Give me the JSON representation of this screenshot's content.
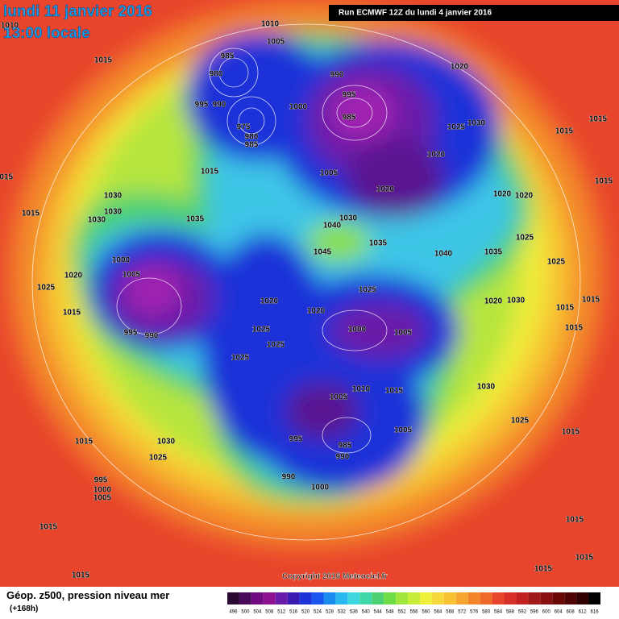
{
  "header": {
    "date": "lundi 11 janvier 2016",
    "time": "13:00 locale",
    "run": "Run ECMWF 12Z du lundi 4 janvier 2016"
  },
  "footer": {
    "field": "Géop. z500, pression niveau mer",
    "lead": "(+168h)",
    "copyright": "Copyright 2016 Meteociel.fr"
  },
  "colorbar": {
    "ticks": [
      496,
      500,
      504,
      508,
      512,
      516,
      520,
      524,
      528,
      532,
      536,
      540,
      544,
      548,
      552,
      556,
      560,
      564,
      568,
      572,
      576,
      580,
      584,
      588,
      592,
      596,
      600,
      604,
      608,
      612,
      616
    ]
  },
  "pressure_labels": [
    "1010",
    "1010",
    "1005",
    "985",
    "980",
    "1015",
    "995",
    "990",
    "975",
    "980",
    "985",
    "1000",
    "990",
    "995",
    "985",
    "1020",
    "1025",
    "1030",
    "1020",
    "1005",
    "1020",
    "1015",
    "1015",
    "1015",
    "1015",
    "1015",
    "1015",
    "1030",
    "1030",
    "1030",
    "1035",
    "1040",
    "1030",
    "1045",
    "1035",
    "1040",
    "1035",
    "1025",
    "1020",
    "1020",
    "1025",
    "1000",
    "1005",
    "1020",
    "1025",
    "1015",
    "995",
    "990",
    "1020",
    "1025",
    "1020",
    "1000",
    "1005",
    "1025",
    "1025",
    "1025",
    "1010",
    "1015",
    "1005",
    "1030",
    "1025",
    "1005",
    "995",
    "985",
    "990",
    "990",
    "1000",
    "1015",
    "1030",
    "1025",
    "995",
    "1000",
    "1005",
    "1015",
    "1015",
    "1015",
    "1015",
    "1015",
    "1015",
    "1020",
    "1030",
    "1015",
    "1015",
    "1015"
  ]
}
